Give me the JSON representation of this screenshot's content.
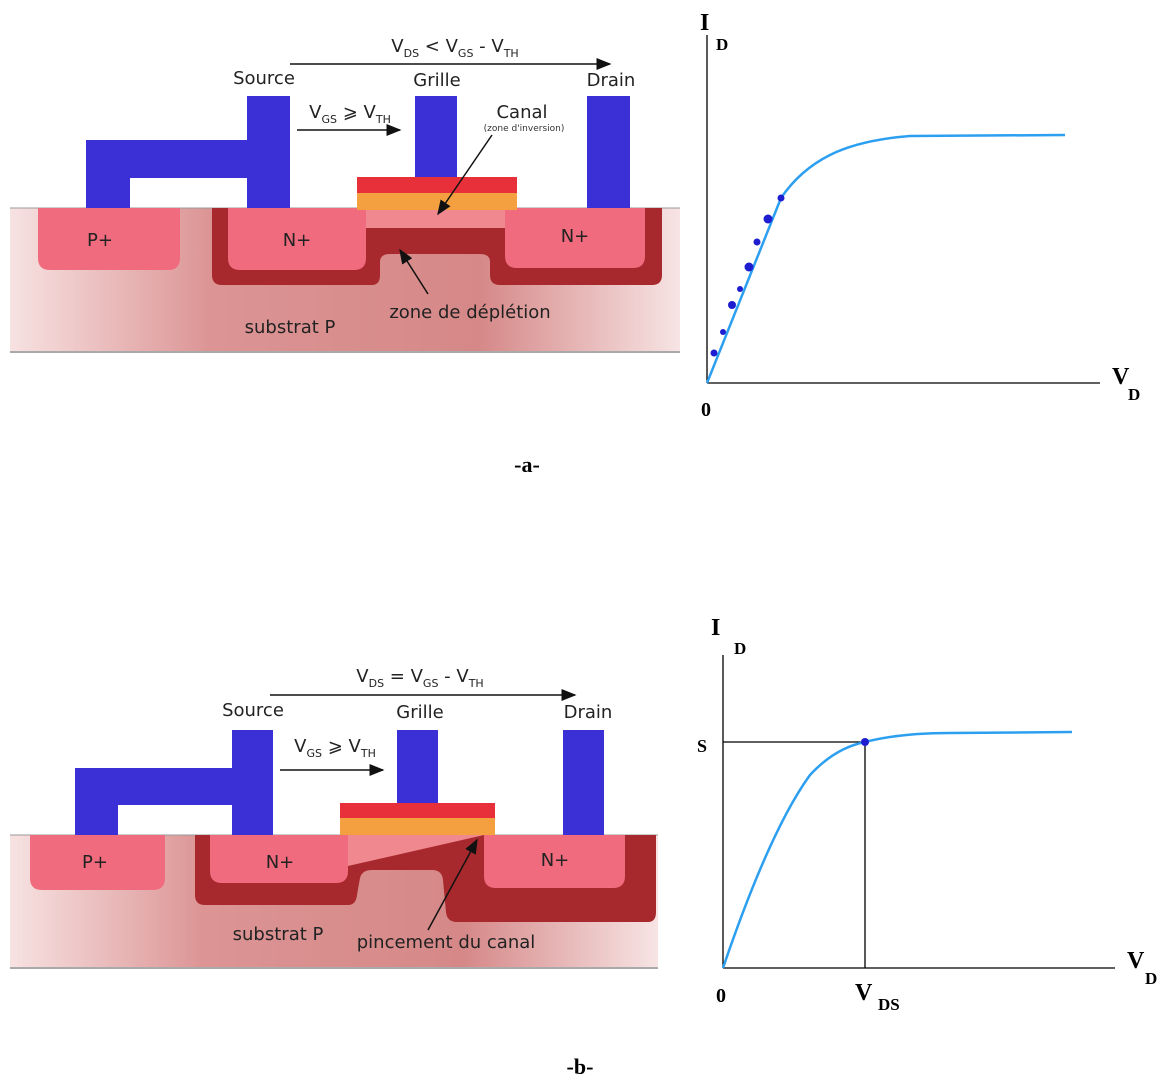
{
  "panel_a": {
    "caption": "-a-",
    "diagram": {
      "vds_formula": [
        "V",
        "DS",
        " < V",
        "GS",
        " - V",
        "TH"
      ],
      "vgs_formula": [
        "V",
        "GS",
        " ⩾ V",
        "TH"
      ],
      "source": "Source",
      "gate": "Grille",
      "drain": "Drain",
      "channel": "Canal",
      "channel_note": "(zone d'inversion)",
      "p_plus": "P+",
      "n_plus_source": "N+",
      "n_plus_drain": "N+",
      "depletion": "zone de déplétion",
      "substrate": "substrat P"
    },
    "graph": {
      "y_label": "I",
      "y_label_sub": "D",
      "x_label": "V",
      "x_label_sub": "D",
      "origin": "0"
    }
  },
  "panel_b": {
    "caption": "-b-",
    "diagram": {
      "vds_formula": [
        "V",
        "DS",
        " = V",
        "GS",
        " - V",
        "TH"
      ],
      "vgs_formula": [
        "V",
        "GS",
        " ⩾ V",
        "TH"
      ],
      "source": "Source",
      "gate": "Grille",
      "drain": "Drain",
      "p_plus": "P+",
      "n_plus_source": "N+",
      "n_plus_drain": "N+",
      "substrate": "substrat P",
      "pinch": "pincement du canal"
    },
    "graph": {
      "y_label": "I",
      "y_label_sub": "D",
      "x_label": "V",
      "x_label_sub": "D",
      "origin": "0",
      "s_label": "S",
      "vds_label": "V",
      "vds_label_sub": "DS"
    }
  }
}
